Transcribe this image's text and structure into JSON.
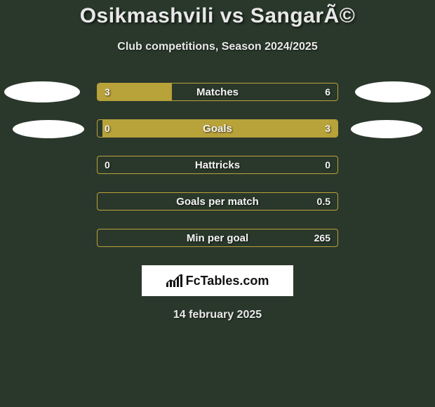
{
  "title": "Osikmashvili vs SangarÃ©",
  "subtitle": "Club competitions, Season 2024/2025",
  "date": "14 february 2025",
  "logo_text": "FcTables.com",
  "colors": {
    "background": "#2a382b",
    "bar_fill": "#b8a23a",
    "bar_border": "#b8a23a",
    "text": "#e8e8e8",
    "oval": "#ffffff"
  },
  "ovals": [
    {
      "row_index": 0,
      "left": true,
      "right": true,
      "size": "big"
    },
    {
      "row_index": 1,
      "left": true,
      "right": true,
      "size": "small"
    }
  ],
  "stats": [
    {
      "label": "Matches",
      "left_value": "3",
      "right_value": "6",
      "left_fill_pct": 31,
      "right_fill_pct": 0
    },
    {
      "label": "Goals",
      "left_value": "0",
      "right_value": "3",
      "left_fill_pct": 0,
      "right_fill_pct": 98
    },
    {
      "label": "Hattricks",
      "left_value": "0",
      "right_value": "0",
      "left_fill_pct": 0,
      "right_fill_pct": 0
    },
    {
      "label": "Goals per match",
      "left_value": "",
      "right_value": "0.5",
      "left_fill_pct": 0,
      "right_fill_pct": 0
    },
    {
      "label": "Min per goal",
      "left_value": "",
      "right_value": "265",
      "left_fill_pct": 0,
      "right_fill_pct": 0
    }
  ]
}
